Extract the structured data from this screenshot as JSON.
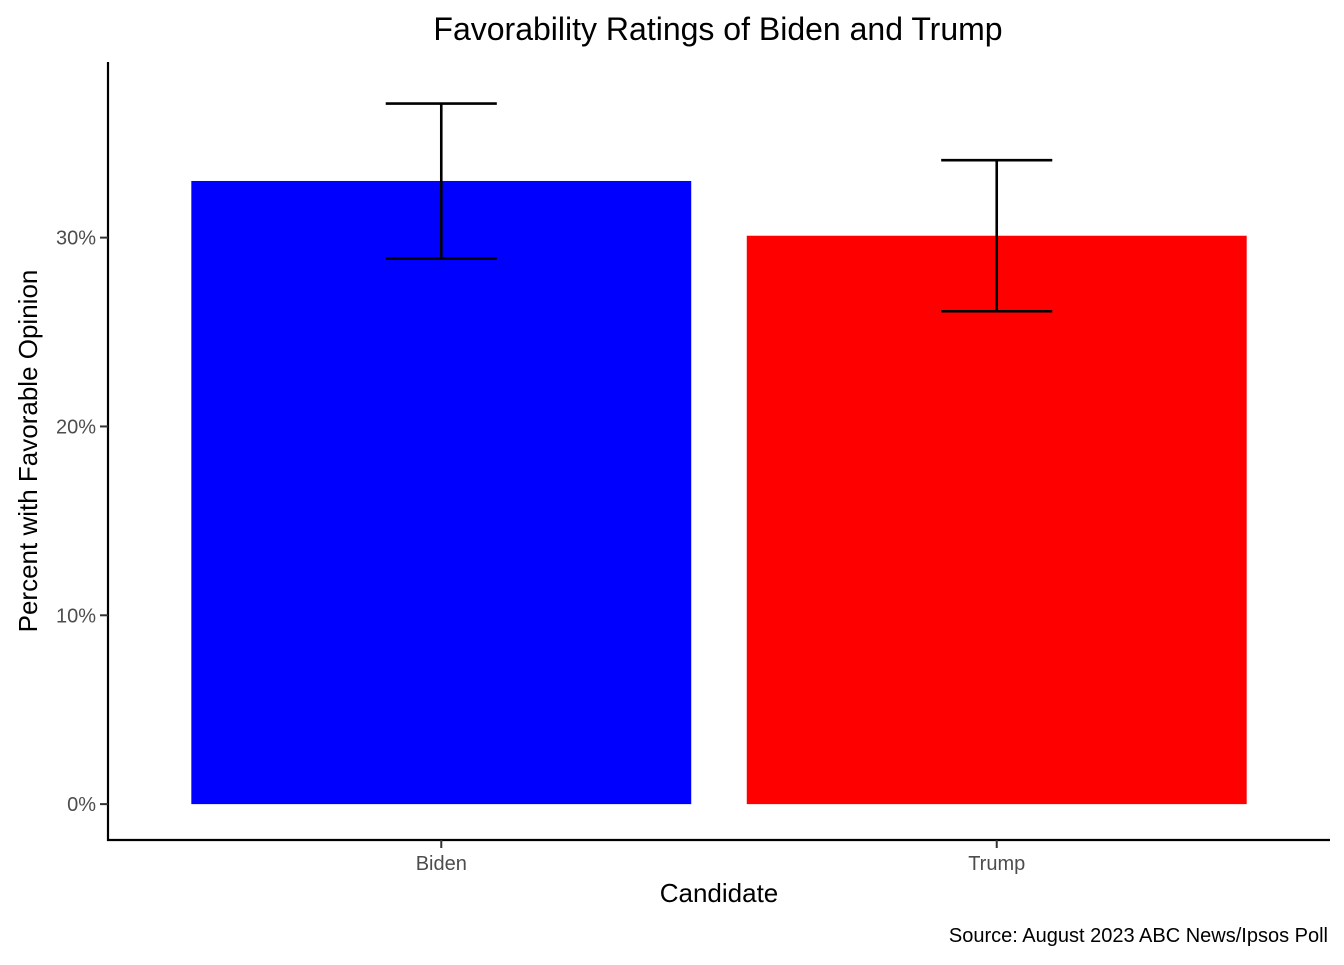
{
  "chart_data": {
    "type": "bar",
    "title": "Favorability Ratings of Biden and Trump",
    "xlabel": "Candidate",
    "ylabel": "Percent with Favorable Opinion",
    "caption": "Source: August 2023 ABC News/Ipsos Poll",
    "categories": [
      "Biden",
      "Trump"
    ],
    "values": [
      33,
      30.1
    ],
    "error_low": [
      28.9,
      26.1
    ],
    "error_high": [
      37.1,
      34.1
    ],
    "colors": [
      "#0000FF",
      "#FF0000"
    ],
    "ylim": [
      -1.9,
      39.3
    ],
    "yticks": [
      0,
      10,
      20,
      30
    ],
    "ytick_labels": [
      "0%",
      "10%",
      "20%",
      "30%"
    ],
    "grid": false,
    "legend": "none"
  }
}
